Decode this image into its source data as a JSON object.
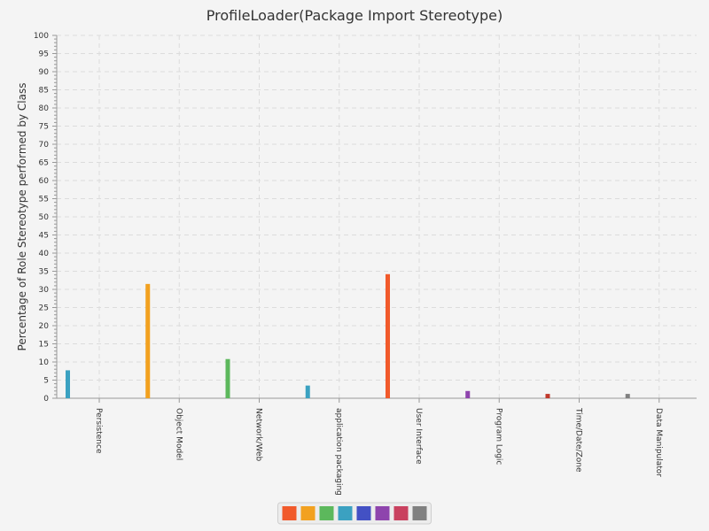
{
  "chart_data": {
    "type": "bar",
    "title": "ProfileLoader(Package Import Stereotype)",
    "xlabel": "",
    "ylabel": "Percentage of Role Stereotype performed by Class",
    "ylim": [
      0,
      100
    ],
    "ytick_step": 5,
    "grid": true,
    "legend_position": "bottom",
    "categories": [
      "Persistence",
      "Object Model",
      "Network/Web",
      "application packaging",
      "User Interface",
      "Program Logic",
      "Time/Date/Zone",
      "Data Manipulator"
    ],
    "values": [
      7.7,
      31.5,
      10.8,
      3.5,
      34.2,
      2.0,
      1.2,
      1.2
    ],
    "colors": [
      "#3ba1c1",
      "#f2a11f",
      "#5cb85c",
      "#3ba1c1",
      "#f15a2b",
      "#8e44ad",
      "#c0392b",
      "#808080"
    ],
    "legend_colors": [
      "#f15a2b",
      "#f2a11f",
      "#5cb85c",
      "#3ba1c1",
      "#4351c4",
      "#8e44ad",
      "#c9415f",
      "#808080"
    ]
  }
}
